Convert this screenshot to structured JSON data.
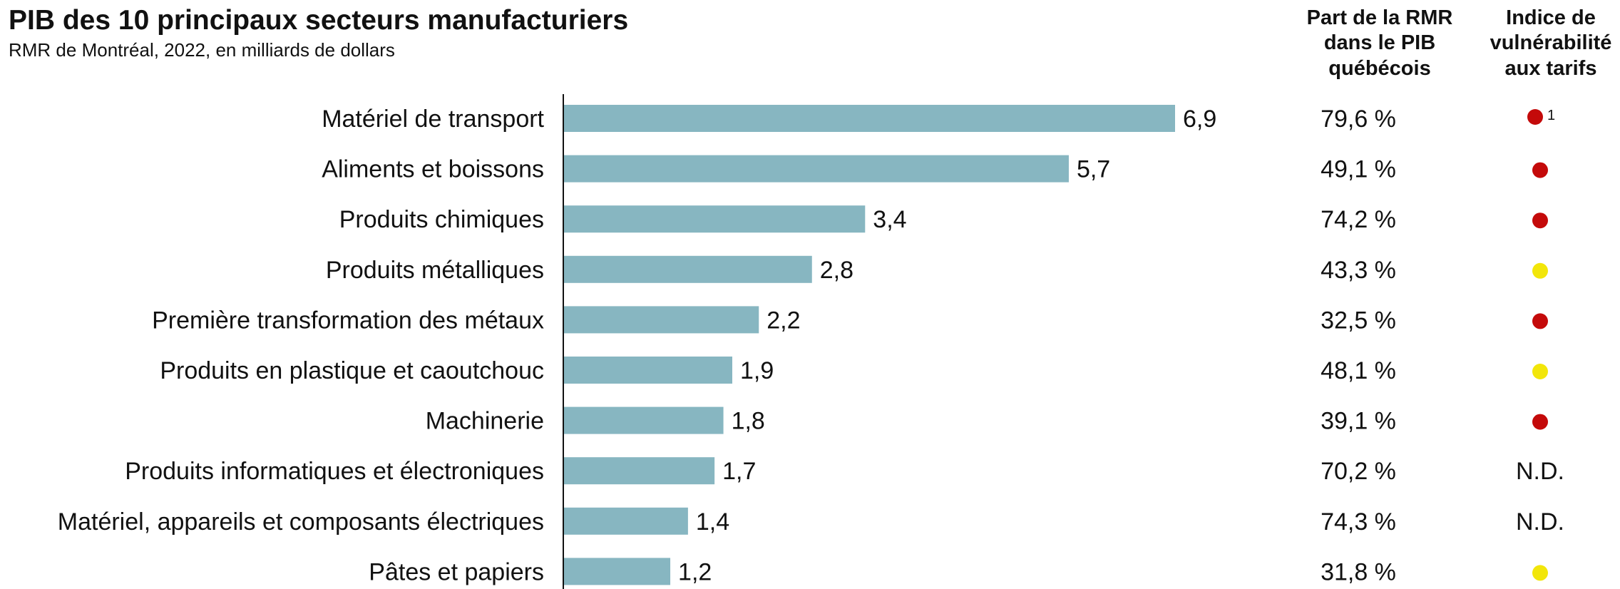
{
  "header": {
    "title": "PIB des 10 principaux secteurs manufacturiers",
    "subtitle": "RMR de Montréal, 2022, en milliards de dollars",
    "col_share": [
      "Part de la RMR",
      "dans le PIB",
      "québécois"
    ],
    "col_index": [
      "Indice de",
      "vulnérabilité",
      "aux tarifs"
    ]
  },
  "chart_data": {
    "type": "bar",
    "orientation": "horizontal",
    "title": "PIB des 10 principaux secteurs manufacturiers",
    "subtitle": "RMR de Montréal, 2022, en milliards de dollars",
    "categories": [
      "Matériel de transport",
      "Aliments et boissons",
      "Produits chimiques",
      "Produits métalliques",
      "Première transformation des métaux",
      "Produits en plastique et caoutchouc",
      "Machinerie",
      "Produits informatiques et électroniques",
      "Matériel, appareils et composants électriques",
      "Pâtes et papiers"
    ],
    "values": [
      6.9,
      5.7,
      3.4,
      2.8,
      2.2,
      1.9,
      1.8,
      1.7,
      1.4,
      1.2
    ],
    "value_labels": [
      "6,9",
      "5,7",
      "3,4",
      "2,8",
      "2,2",
      "1,9",
      "1,8",
      "1,7",
      "1,4",
      "1,2"
    ],
    "share_labels": [
      "79,6 %",
      "49,1 %",
      "74,2 %",
      "43,3 %",
      "32,5 %",
      "48,1 %",
      "39,1 %",
      "70,2 %",
      "74,3 %",
      "31,8 %"
    ],
    "vulnerability": [
      "red",
      "red",
      "red",
      "yellow",
      "red",
      "yellow",
      "red",
      "N.D.",
      "N.D.",
      "yellow"
    ],
    "vulnerability_note": {
      "row": 0,
      "text": "1"
    },
    "bar_color": "#87b6c1",
    "dot_colors": {
      "red": "#c40a0a",
      "yellow": "#f2e60a"
    },
    "xlim": [
      0,
      6.9
    ],
    "grid": false,
    "legend": "none"
  }
}
